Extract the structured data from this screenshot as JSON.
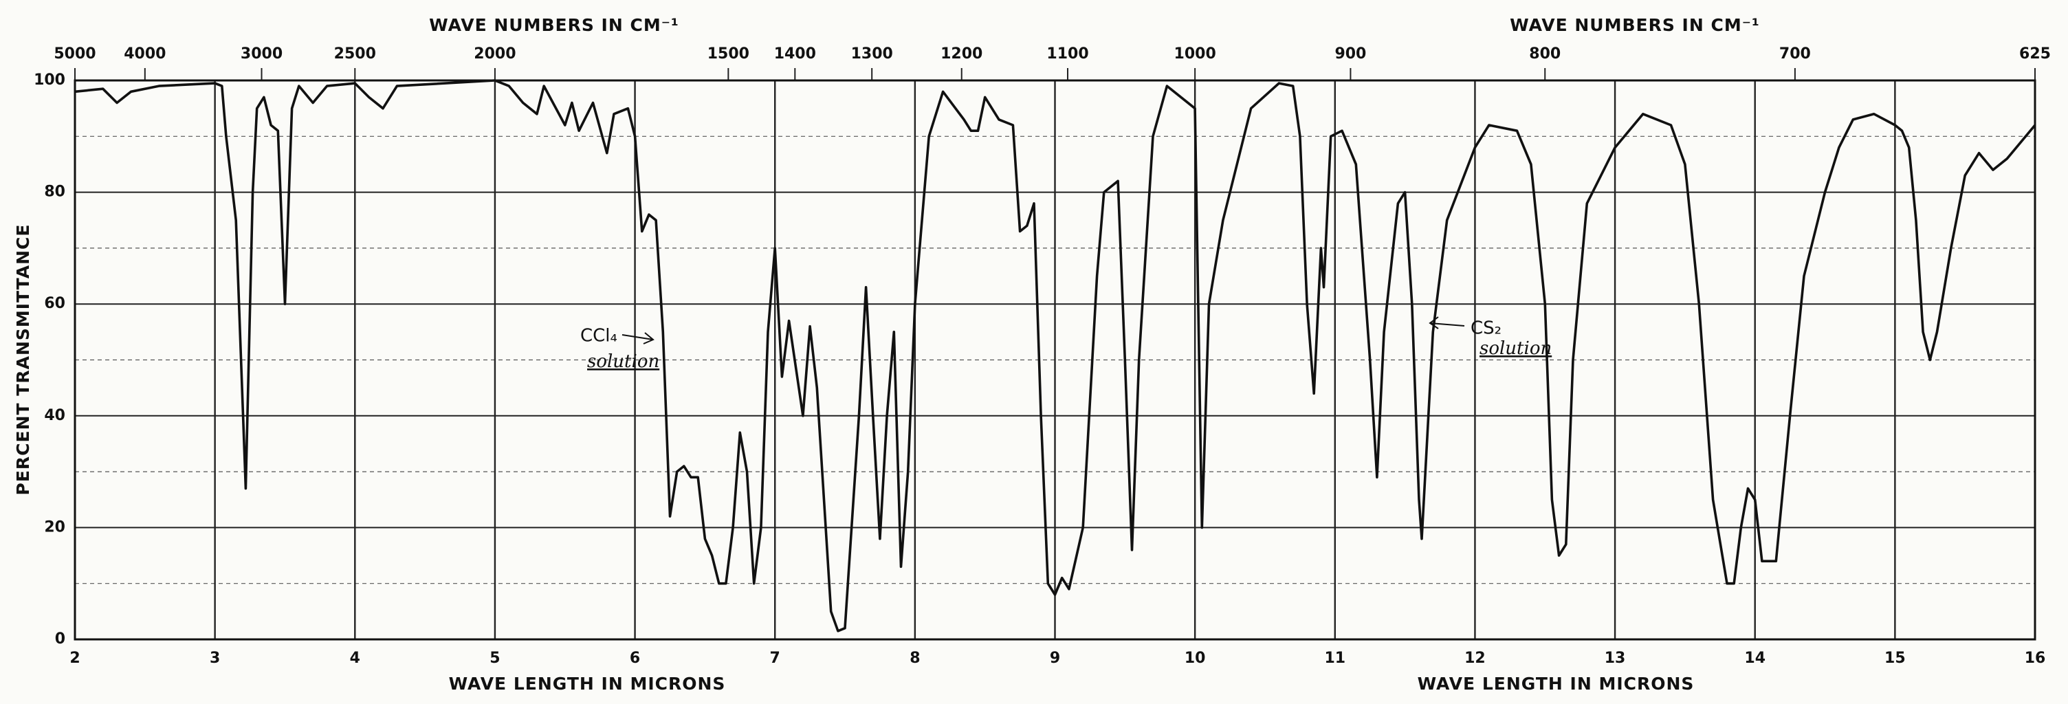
{
  "chart_data": {
    "type": "line",
    "xlabel": "WAVE LENGTH IN MICRONS",
    "x2label": "WAVE NUMBERS IN CM⁻¹",
    "ylabel": "PERCENT TRANSMITTANCE",
    "xlim": [
      2,
      16
    ],
    "xticks": [
      2,
      3,
      4,
      5,
      6,
      7,
      8,
      9,
      10,
      11,
      12,
      13,
      14,
      15,
      16
    ],
    "x2lim": [
      5000,
      625
    ],
    "x2scale": "reciprocal",
    "x2ticks": [
      5000,
      4000,
      3000,
      2500,
      2000,
      1500,
      1400,
      1300,
      1200,
      1100,
      1000,
      900,
      800,
      700,
      625
    ],
    "ylim": [
      0,
      100
    ],
    "yticks": [
      0,
      20,
      40,
      60,
      80,
      100
    ],
    "yminor": [
      10,
      30,
      50,
      70,
      90
    ],
    "grid": true,
    "color": "#111111",
    "annotations": [
      {
        "text": "CCl₄",
        "subtext": "solution"
      },
      {
        "text": "CS₂",
        "subtext": "solution"
      }
    ],
    "x": [
      2.0,
      2.2,
      2.3,
      2.4,
      2.6,
      3.0,
      3.05,
      3.08,
      3.15,
      3.22,
      3.27,
      3.3,
      3.35,
      3.4,
      3.45,
      3.5,
      3.55,
      3.6,
      3.7,
      3.8,
      4.0,
      4.1,
      4.2,
      4.3,
      5.0,
      5.1,
      5.2,
      5.3,
      5.35,
      5.5,
      5.55,
      5.6,
      5.7,
      5.8,
      5.85,
      5.95,
      6.0,
      6.05,
      6.1,
      6.15,
      6.2,
      6.25,
      6.3,
      6.35,
      6.4,
      6.45,
      6.5,
      6.55,
      6.6,
      6.65,
      6.7,
      6.75,
      6.8,
      6.85,
      6.9,
      6.95,
      7.0,
      7.05,
      7.1,
      7.2,
      7.25,
      7.3,
      7.4,
      7.45,
      7.5,
      7.6,
      7.65,
      7.7,
      7.75,
      7.8,
      7.85,
      7.9,
      7.95,
      8.0,
      8.1,
      8.2,
      8.35,
      8.4,
      8.45,
      8.5,
      8.6,
      8.7,
      8.75,
      8.8,
      8.85,
      8.9,
      8.95,
      9.0,
      9.05,
      9.1,
      9.2,
      9.3,
      9.35,
      9.45,
      9.5,
      9.55,
      9.6,
      9.7,
      9.8,
      10.0,
      10.05,
      10.1,
      10.2,
      10.4,
      10.6,
      10.7,
      10.75,
      10.8,
      10.85,
      10.9,
      10.92,
      10.97,
      11.05,
      11.15,
      11.25,
      11.3,
      11.35,
      11.45,
      11.5,
      11.55,
      11.6,
      11.62,
      11.7,
      11.8,
      12.0,
      12.1,
      12.3,
      12.4,
      12.5,
      12.55,
      12.6,
      12.65,
      12.7,
      12.8,
      13.0,
      13.2,
      13.4,
      13.5,
      13.6,
      13.7,
      13.8,
      13.85,
      13.9,
      13.95,
      14.0,
      14.05,
      14.15,
      14.25,
      14.35,
      14.5,
      14.6,
      14.7,
      14.85,
      15.0,
      15.05,
      15.1,
      15.15,
      15.2,
      15.25,
      15.3,
      15.4,
      15.5,
      15.6,
      15.7,
      15.8,
      16.0
    ],
    "values": [
      98,
      98.5,
      96,
      98,
      99,
      99.5,
      99,
      90,
      75,
      27,
      80,
      95,
      97,
      92,
      91,
      60,
      95,
      99,
      96,
      99,
      99.5,
      97,
      95,
      99,
      100,
      99,
      96,
      94,
      99,
      92,
      96,
      91,
      96,
      87,
      94,
      95,
      90,
      73,
      76,
      75,
      55,
      22,
      30,
      31,
      29,
      29,
      18,
      15,
      10,
      10,
      20,
      37,
      30,
      10,
      20,
      55,
      70,
      47,
      57,
      40,
      56,
      45,
      5,
      1.5,
      2,
      40,
      63,
      40,
      18,
      40,
      55,
      13,
      30,
      60,
      90,
      98,
      93,
      91,
      91,
      97,
      93,
      92,
      73,
      74,
      78,
      40,
      10,
      8,
      11,
      9,
      20,
      65,
      80,
      82,
      50,
      16,
      50,
      90,
      99,
      95,
      20,
      60,
      75,
      95,
      99.5,
      99,
      90,
      60,
      44,
      70,
      63,
      90,
      91,
      85,
      50,
      29,
      55,
      78,
      80,
      60,
      25,
      18,
      55,
      75,
      88,
      92,
      91,
      85,
      60,
      25,
      15,
      17,
      50,
      78,
      88,
      94,
      92,
      85,
      60,
      25,
      10,
      10,
      20,
      27,
      25,
      14,
      14,
      40,
      65,
      80,
      88,
      93,
      94,
      92,
      91,
      88,
      75,
      55,
      50,
      55,
      70,
      83,
      87,
      84,
      86,
      92
    ]
  }
}
